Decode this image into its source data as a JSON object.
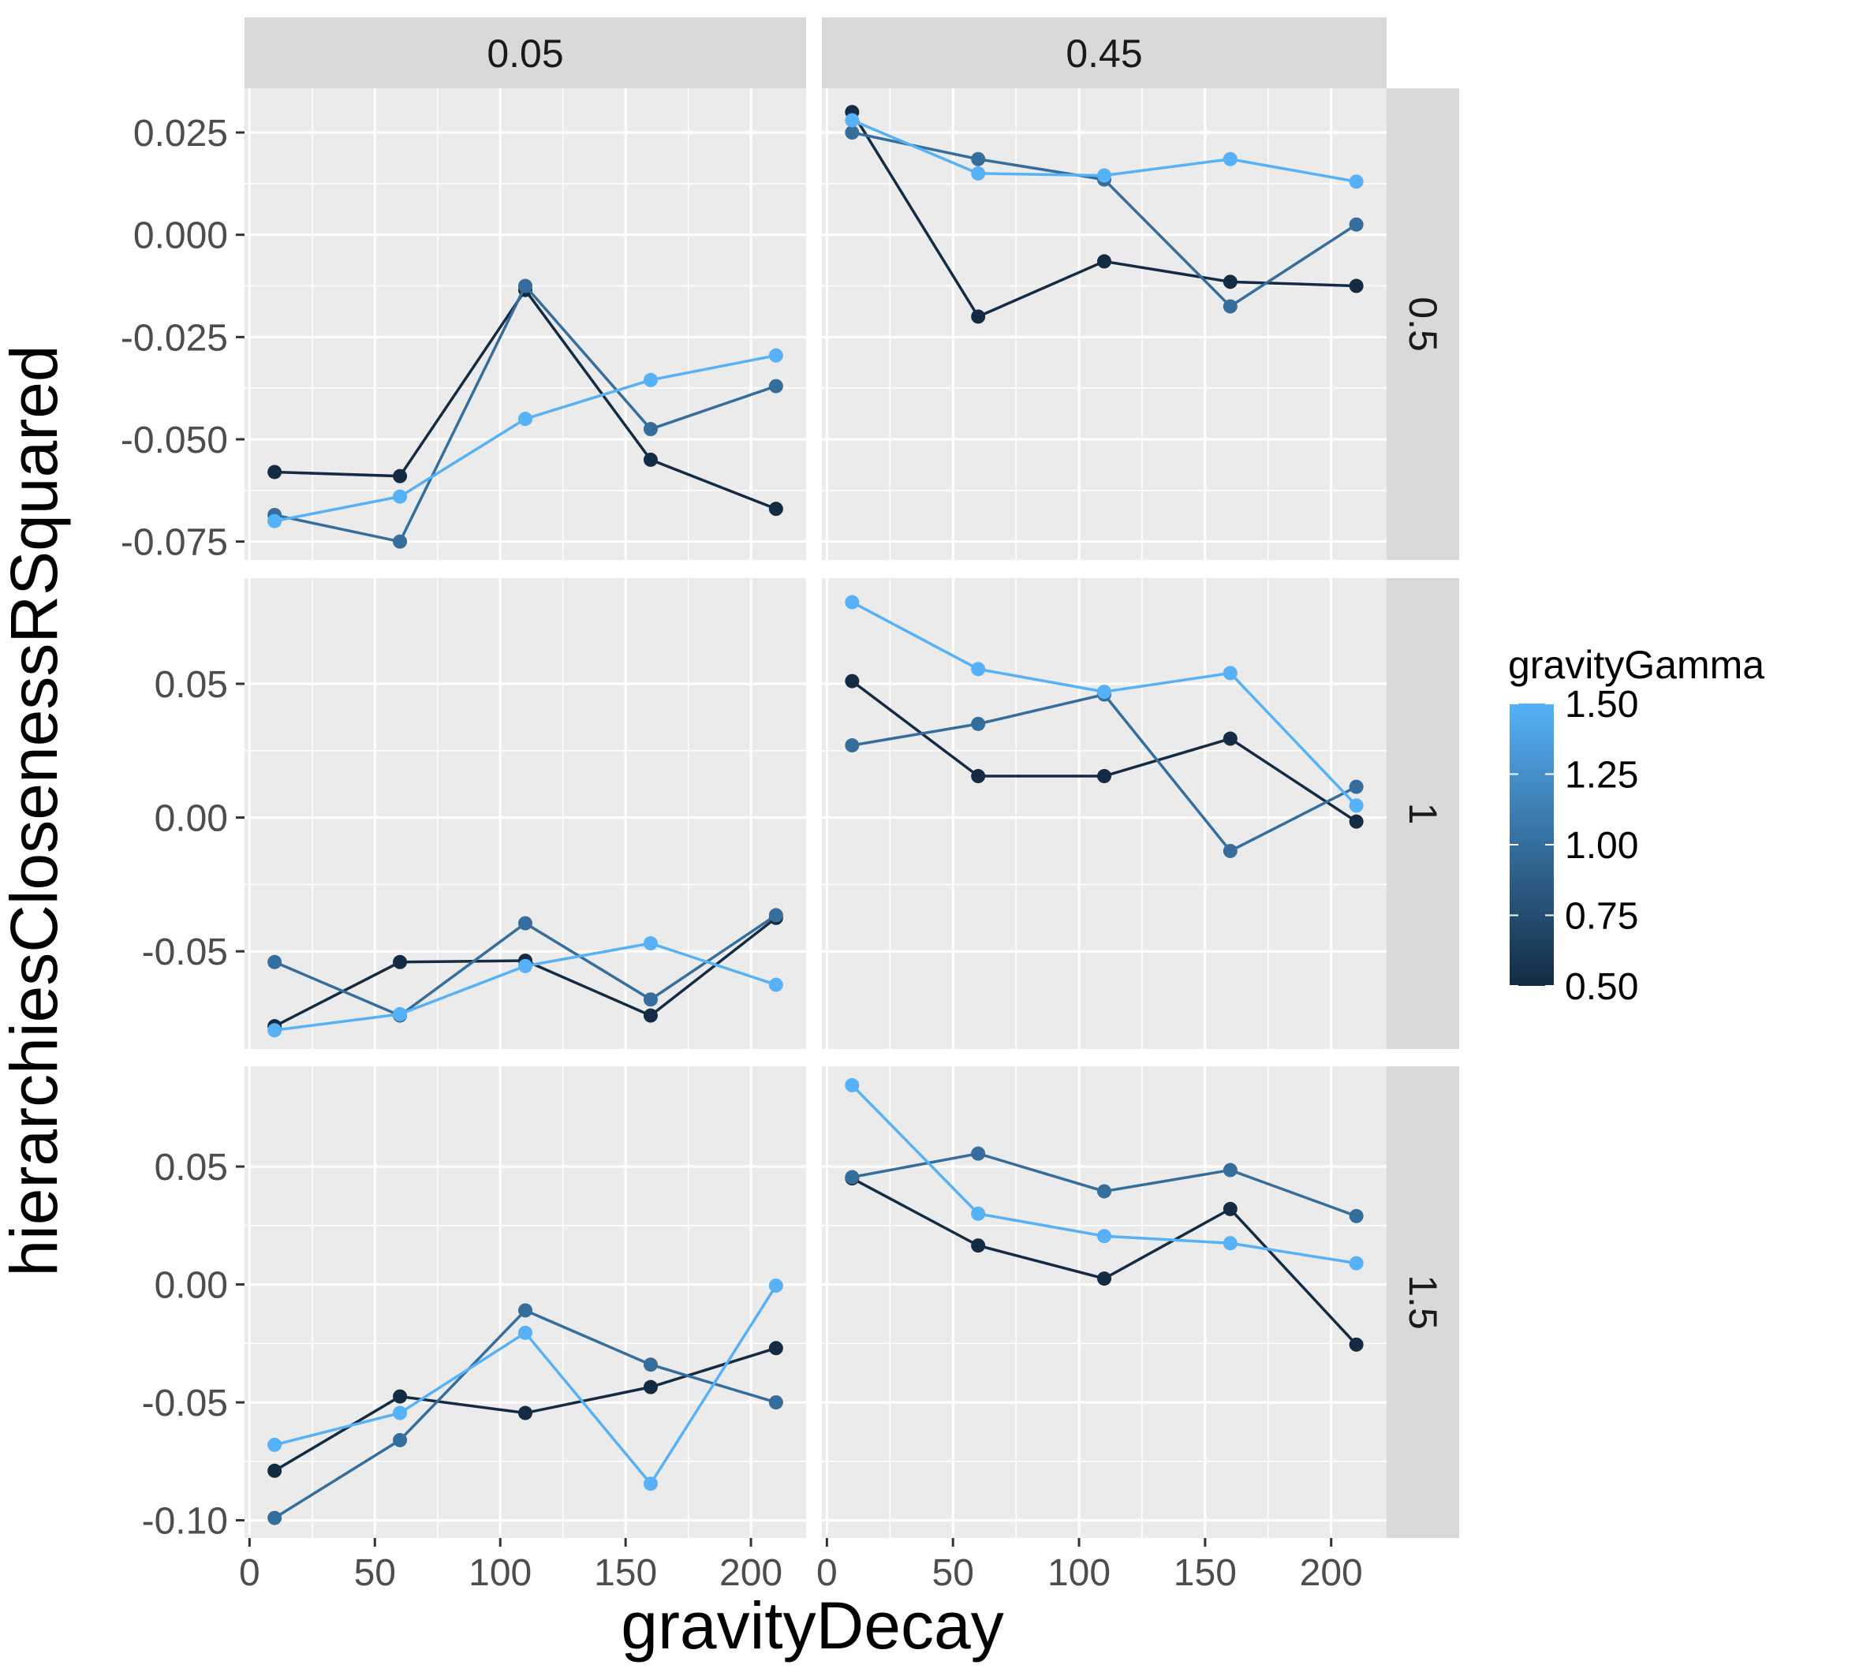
{
  "chart_data": {
    "type": "line",
    "xlabel": "gravityDecay",
    "ylabel": "hierarchiesClosenessRSquared",
    "facet_cols": [
      "0.05",
      "0.45"
    ],
    "facet_rows": [
      "0.5",
      "1",
      "1.5"
    ],
    "x_ticks": [
      0,
      50,
      100,
      150,
      200
    ],
    "xlim": [
      -2,
      222
    ],
    "legend": {
      "title": "gravityGamma",
      "position": "right",
      "breaks": [
        "1.50",
        "1.25",
        "1.00",
        "0.75",
        "0.50"
      ],
      "low_color": "#132B43",
      "high_color": "#56B1F7",
      "range": [
        0.5,
        1.5
      ]
    },
    "grid": true,
    "x": [
      10,
      60,
      110,
      160,
      210
    ],
    "rows": [
      {
        "label": "0.5",
        "ylim": [
          -0.0795,
          0.0358
        ],
        "y_ticks": [
          0.025,
          0.0,
          -0.025,
          -0.05,
          -0.075
        ],
        "y_tick_labels": [
          "0.025",
          "0.000",
          "-0.025",
          "-0.050",
          "-0.075"
        ]
      },
      {
        "label": "1",
        "ylim": [
          -0.0865,
          0.0895
        ],
        "y_ticks": [
          0.05,
          0.0,
          -0.05
        ],
        "y_tick_labels": [
          "0.05",
          "0.00",
          "-0.05"
        ]
      },
      {
        "label": "1.5",
        "ylim": [
          -0.1075,
          0.0925
        ],
        "y_ticks": [
          0.05,
          0.0,
          -0.05,
          -0.1
        ],
        "y_tick_labels": [
          "0.05",
          "0.00",
          "-0.05",
          "-0.10"
        ]
      }
    ],
    "panels": [
      {
        "row": 0,
        "col": 0,
        "series": [
          {
            "gamma": 0.5,
            "values": [
              -0.058,
              -0.059,
              -0.0135,
              -0.055,
              -0.067
            ]
          },
          {
            "gamma": 1.0,
            "values": [
              -0.0685,
              -0.075,
              -0.0125,
              -0.0475,
              -0.037
            ]
          },
          {
            "gamma": 1.5,
            "values": [
              -0.07,
              -0.064,
              -0.045,
              -0.0355,
              -0.0295
            ]
          }
        ]
      },
      {
        "row": 0,
        "col": 1,
        "series": [
          {
            "gamma": 0.5,
            "values": [
              0.03,
              -0.02,
              -0.0065,
              -0.0115,
              -0.0125
            ]
          },
          {
            "gamma": 1.0,
            "values": [
              0.025,
              0.0185,
              0.0135,
              -0.0175,
              0.0025
            ]
          },
          {
            "gamma": 1.5,
            "values": [
              0.028,
              0.015,
              0.0145,
              0.0185,
              0.013
            ]
          }
        ]
      },
      {
        "row": 1,
        "col": 0,
        "series": [
          {
            "gamma": 0.5,
            "values": [
              -0.078,
              -0.054,
              -0.0535,
              -0.074,
              -0.0375
            ]
          },
          {
            "gamma": 1.0,
            "values": [
              -0.054,
              -0.074,
              -0.0395,
              -0.068,
              -0.0365
            ]
          },
          {
            "gamma": 1.5,
            "values": [
              -0.0795,
              -0.0735,
              -0.0555,
              -0.047,
              -0.0625
            ]
          }
        ]
      },
      {
        "row": 1,
        "col": 1,
        "series": [
          {
            "gamma": 0.5,
            "values": [
              0.051,
              0.0155,
              0.0155,
              0.0295,
              -0.0015
            ]
          },
          {
            "gamma": 1.0,
            "values": [
              0.027,
              0.035,
              0.046,
              -0.0125,
              0.0115
            ]
          },
          {
            "gamma": 1.5,
            "values": [
              0.0805,
              0.0555,
              0.047,
              0.054,
              0.0045
            ]
          }
        ]
      },
      {
        "row": 2,
        "col": 0,
        "series": [
          {
            "gamma": 0.5,
            "values": [
              -0.079,
              -0.0475,
              -0.0545,
              -0.0435,
              -0.027
            ]
          },
          {
            "gamma": 1.0,
            "values": [
              -0.099,
              -0.066,
              -0.011,
              -0.034,
              -0.05
            ]
          },
          {
            "gamma": 1.5,
            "values": [
              -0.068,
              -0.0545,
              -0.0205,
              -0.0845,
              -0.0005
            ]
          }
        ]
      },
      {
        "row": 2,
        "col": 1,
        "series": [
          {
            "gamma": 0.5,
            "values": [
              0.045,
              0.0165,
              0.0025,
              0.032,
              -0.0255
            ]
          },
          {
            "gamma": 1.0,
            "values": [
              0.0455,
              0.0555,
              0.0395,
              0.0485,
              0.029
            ]
          },
          {
            "gamma": 1.5,
            "values": [
              0.0845,
              0.03,
              0.0205,
              0.0175,
              0.009
            ]
          }
        ]
      }
    ]
  }
}
